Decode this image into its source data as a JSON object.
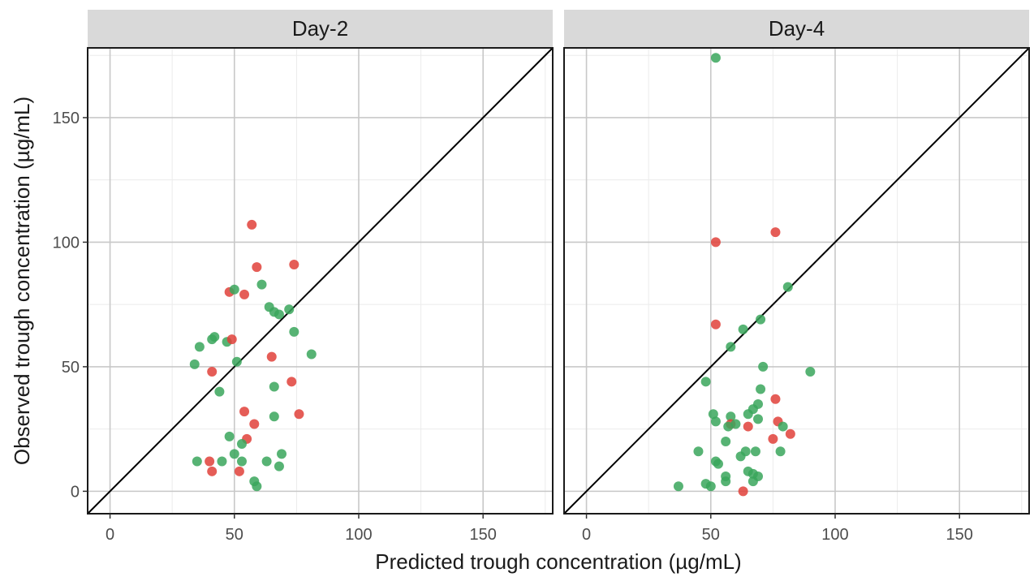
{
  "chart_data": {
    "type": "scatter",
    "xlabel": "Predicted trough concentration (µg/mL)",
    "ylabel": "Observed trough concentration (µg/mL)",
    "xlim": [
      -9,
      178
    ],
    "ylim": [
      -9,
      178
    ],
    "x_ticks": [
      0,
      50,
      100,
      150
    ],
    "y_ticks": [
      0,
      50,
      100,
      150
    ],
    "grid": true,
    "identity_line": true,
    "colors": {
      "green": "#3aa65c",
      "red": "#e0413a"
    },
    "panels": [
      {
        "title": "Day-2",
        "points": [
          {
            "x": 57,
            "y": 107,
            "c": "red"
          },
          {
            "x": 59,
            "y": 90,
            "c": "red"
          },
          {
            "x": 74,
            "y": 91,
            "c": "red"
          },
          {
            "x": 48,
            "y": 80,
            "c": "red"
          },
          {
            "x": 54,
            "y": 79,
            "c": "red"
          },
          {
            "x": 50,
            "y": 81,
            "c": "green"
          },
          {
            "x": 61,
            "y": 83,
            "c": "green"
          },
          {
            "x": 64,
            "y": 74,
            "c": "green"
          },
          {
            "x": 66,
            "y": 72,
            "c": "green"
          },
          {
            "x": 68,
            "y": 71,
            "c": "green"
          },
          {
            "x": 72,
            "y": 73,
            "c": "green"
          },
          {
            "x": 74,
            "y": 64,
            "c": "green"
          },
          {
            "x": 81,
            "y": 55,
            "c": "green"
          },
          {
            "x": 42,
            "y": 62,
            "c": "green"
          },
          {
            "x": 41,
            "y": 61,
            "c": "green"
          },
          {
            "x": 47,
            "y": 60,
            "c": "green"
          },
          {
            "x": 49,
            "y": 61,
            "c": "red"
          },
          {
            "x": 36,
            "y": 58,
            "c": "green"
          },
          {
            "x": 34,
            "y": 51,
            "c": "green"
          },
          {
            "x": 51,
            "y": 52,
            "c": "green"
          },
          {
            "x": 41,
            "y": 48,
            "c": "red"
          },
          {
            "x": 65,
            "y": 54,
            "c": "red"
          },
          {
            "x": 73,
            "y": 44,
            "c": "red"
          },
          {
            "x": 66,
            "y": 42,
            "c": "green"
          },
          {
            "x": 44,
            "y": 40,
            "c": "green"
          },
          {
            "x": 54,
            "y": 32,
            "c": "red"
          },
          {
            "x": 76,
            "y": 31,
            "c": "red"
          },
          {
            "x": 66,
            "y": 30,
            "c": "green"
          },
          {
            "x": 58,
            "y": 27,
            "c": "red"
          },
          {
            "x": 48,
            "y": 22,
            "c": "green"
          },
          {
            "x": 55,
            "y": 21,
            "c": "red"
          },
          {
            "x": 53,
            "y": 19,
            "c": "green"
          },
          {
            "x": 69,
            "y": 15,
            "c": "green"
          },
          {
            "x": 50,
            "y": 15,
            "c": "green"
          },
          {
            "x": 35,
            "y": 12,
            "c": "green"
          },
          {
            "x": 40,
            "y": 12,
            "c": "red"
          },
          {
            "x": 45,
            "y": 12,
            "c": "green"
          },
          {
            "x": 53,
            "y": 12,
            "c": "green"
          },
          {
            "x": 63,
            "y": 12,
            "c": "green"
          },
          {
            "x": 68,
            "y": 10,
            "c": "green"
          },
          {
            "x": 41,
            "y": 8,
            "c": "red"
          },
          {
            "x": 52,
            "y": 8,
            "c": "red"
          },
          {
            "x": 58,
            "y": 4,
            "c": "green"
          },
          {
            "x": 59,
            "y": 2,
            "c": "green"
          }
        ]
      },
      {
        "title": "Day-4",
        "points": [
          {
            "x": 52,
            "y": 174,
            "c": "green"
          },
          {
            "x": 76,
            "y": 104,
            "c": "red"
          },
          {
            "x": 52,
            "y": 100,
            "c": "red"
          },
          {
            "x": 81,
            "y": 82,
            "c": "green"
          },
          {
            "x": 70,
            "y": 69,
            "c": "green"
          },
          {
            "x": 52,
            "y": 67,
            "c": "red"
          },
          {
            "x": 63,
            "y": 65,
            "c": "green"
          },
          {
            "x": 58,
            "y": 58,
            "c": "green"
          },
          {
            "x": 71,
            "y": 50,
            "c": "green"
          },
          {
            "x": 90,
            "y": 48,
            "c": "green"
          },
          {
            "x": 48,
            "y": 44,
            "c": "green"
          },
          {
            "x": 70,
            "y": 41,
            "c": "green"
          },
          {
            "x": 76,
            "y": 37,
            "c": "red"
          },
          {
            "x": 69,
            "y": 35,
            "c": "green"
          },
          {
            "x": 67,
            "y": 33,
            "c": "green"
          },
          {
            "x": 65,
            "y": 31,
            "c": "green"
          },
          {
            "x": 51,
            "y": 31,
            "c": "green"
          },
          {
            "x": 58,
            "y": 30,
            "c": "green"
          },
          {
            "x": 69,
            "y": 29,
            "c": "green"
          },
          {
            "x": 52,
            "y": 28,
            "c": "green"
          },
          {
            "x": 77,
            "y": 28,
            "c": "red"
          },
          {
            "x": 58,
            "y": 27,
            "c": "red"
          },
          {
            "x": 60,
            "y": 27,
            "c": "green"
          },
          {
            "x": 57,
            "y": 26,
            "c": "green"
          },
          {
            "x": 65,
            "y": 26,
            "c": "red"
          },
          {
            "x": 79,
            "y": 26,
            "c": "green"
          },
          {
            "x": 82,
            "y": 23,
            "c": "red"
          },
          {
            "x": 75,
            "y": 21,
            "c": "red"
          },
          {
            "x": 56,
            "y": 20,
            "c": "green"
          },
          {
            "x": 45,
            "y": 16,
            "c": "green"
          },
          {
            "x": 64,
            "y": 16,
            "c": "green"
          },
          {
            "x": 68,
            "y": 16,
            "c": "green"
          },
          {
            "x": 78,
            "y": 16,
            "c": "green"
          },
          {
            "x": 62,
            "y": 14,
            "c": "green"
          },
          {
            "x": 52,
            "y": 12,
            "c": "green"
          },
          {
            "x": 53,
            "y": 11,
            "c": "green"
          },
          {
            "x": 65,
            "y": 8,
            "c": "green"
          },
          {
            "x": 67,
            "y": 7,
            "c": "green"
          },
          {
            "x": 69,
            "y": 6,
            "c": "green"
          },
          {
            "x": 56,
            "y": 6,
            "c": "green"
          },
          {
            "x": 67,
            "y": 4,
            "c": "green"
          },
          {
            "x": 56,
            "y": 4,
            "c": "green"
          },
          {
            "x": 48,
            "y": 3,
            "c": "green"
          },
          {
            "x": 50,
            "y": 2,
            "c": "green"
          },
          {
            "x": 37,
            "y": 2,
            "c": "green"
          },
          {
            "x": 63,
            "y": 0,
            "c": "red"
          }
        ]
      }
    ]
  }
}
